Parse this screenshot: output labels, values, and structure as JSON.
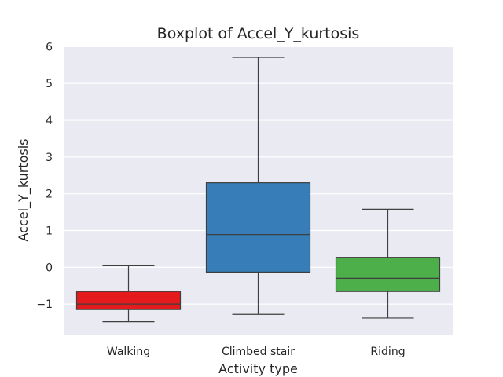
{
  "chart_data": {
    "type": "boxplot",
    "title": "Boxplot of Accel_Y_kurtosis",
    "xlabel": "Activity type",
    "ylabel": "Accel_Y_kurtosis",
    "ylim": [
      -1.83,
      6.03
    ],
    "yticks": [
      {
        "value": -1,
        "label": "−1"
      },
      {
        "value": 0,
        "label": "0"
      },
      {
        "value": 1,
        "label": "1"
      },
      {
        "value": 2,
        "label": "2"
      },
      {
        "value": 3,
        "label": "3"
      },
      {
        "value": 4,
        "label": "4"
      },
      {
        "value": 5,
        "label": "5"
      },
      {
        "value": 6,
        "label": "6"
      }
    ],
    "grid": true,
    "categories": [
      "Walking",
      "Climbed stair",
      "Riding"
    ],
    "boxes": [
      {
        "category": "Walking",
        "whisker_low": -1.48,
        "q1": -1.15,
        "median": -1.0,
        "q3": -0.66,
        "whisker_high": 0.04,
        "color": "#e41a1c"
      },
      {
        "category": "Climbed stair",
        "whisker_low": -1.28,
        "q1": -0.13,
        "median": 0.89,
        "q3": 2.3,
        "whisker_high": 5.71,
        "color": "#377eb8"
      },
      {
        "category": "Riding",
        "whisker_low": -1.38,
        "q1": -0.66,
        "median": -0.3,
        "q3": 0.27,
        "whisker_high": 1.58,
        "color": "#4daf4a"
      }
    ],
    "background_color": "#eaeaf2",
    "grid_color": "#ffffff",
    "line_color": "#3f3f3f"
  }
}
